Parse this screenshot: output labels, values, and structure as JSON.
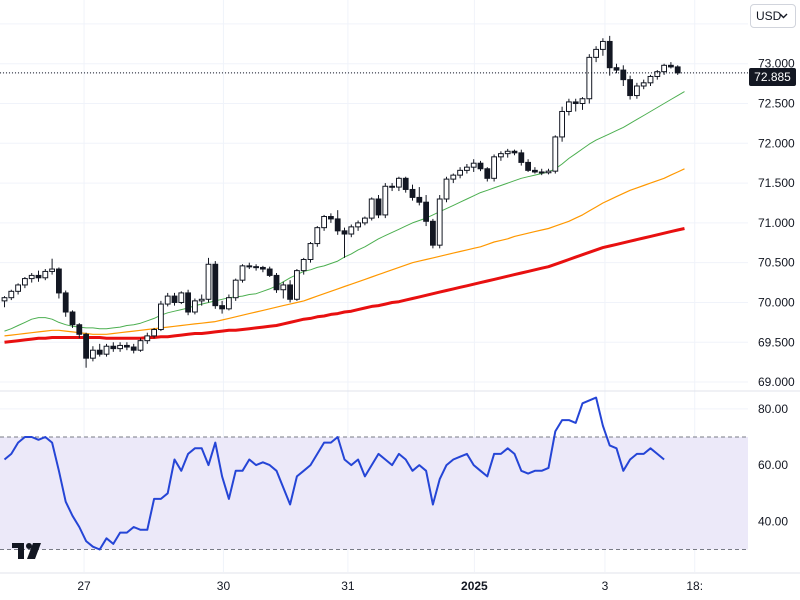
{
  "currency_selector": {
    "label": "USD",
    "chevron_icon": "chevron-down-icon"
  },
  "last_price": "72.885",
  "colors": {
    "candle_up": "#ffffff",
    "candle_down": "#131722",
    "ma_short": "#4caf50",
    "ma_mid": "#ff9800",
    "ma_long": "#e81010",
    "rsi_line": "#2545d6",
    "rsi_band": "#ece9f9",
    "grid": "#f0f3fa"
  },
  "chart_data": [
    {
      "type": "candlestick",
      "yticks": [
        "69.000",
        "69.500",
        "70.000",
        "70.500",
        "71.000",
        "71.500",
        "72.000",
        "72.500",
        "72.885",
        "73.000",
        "73.500"
      ],
      "ylim": [
        68.9,
        73.65
      ],
      "xlim": [
        0,
        101
      ],
      "last_value": 72.885,
      "grid": true,
      "ohlc": [
        [
          70.02,
          70.08,
          69.94,
          70.06
        ],
        [
          70.06,
          70.16,
          70.03,
          70.14
        ],
        [
          70.14,
          70.24,
          70.1,
          70.22
        ],
        [
          70.22,
          70.32,
          70.18,
          70.3
        ],
        [
          70.3,
          70.37,
          70.25,
          70.34
        ],
        [
          70.34,
          70.4,
          70.26,
          70.31
        ],
        [
          70.31,
          70.42,
          70.28,
          70.39
        ],
        [
          70.39,
          70.55,
          70.35,
          70.42
        ],
        [
          70.42,
          70.44,
          70.05,
          70.12
        ],
        [
          70.12,
          70.15,
          69.82,
          69.88
        ],
        [
          69.88,
          69.9,
          69.68,
          69.72
        ],
        [
          69.72,
          69.74,
          69.55,
          69.6
        ],
        [
          69.6,
          69.62,
          69.18,
          69.3
        ],
        [
          69.3,
          69.45,
          69.26,
          69.4
        ],
        [
          69.4,
          69.48,
          69.32,
          69.35
        ],
        [
          69.35,
          69.48,
          69.32,
          69.45
        ],
        [
          69.45,
          69.5,
          69.38,
          69.42
        ],
        [
          69.42,
          69.5,
          69.38,
          69.46
        ],
        [
          69.46,
          69.5,
          69.4,
          69.44
        ],
        [
          69.44,
          69.48,
          69.36,
          69.4
        ],
        [
          69.4,
          69.55,
          69.38,
          69.52
        ],
        [
          69.52,
          69.62,
          69.48,
          69.58
        ],
        [
          69.58,
          69.68,
          69.55,
          69.66
        ],
        [
          69.66,
          70.02,
          69.64,
          69.98
        ],
        [
          69.98,
          70.12,
          69.95,
          70.08
        ],
        [
          70.08,
          70.12,
          69.96,
          70.0
        ],
        [
          70.0,
          70.14,
          69.98,
          70.12
        ],
        [
          70.12,
          70.16,
          69.84,
          69.88
        ],
        [
          69.88,
          70.05,
          69.85,
          70.02
        ],
        [
          70.02,
          70.1,
          69.96,
          70.04
        ],
        [
          70.04,
          70.56,
          70.0,
          70.48
        ],
        [
          70.48,
          70.52,
          69.92,
          69.96
        ],
        [
          69.96,
          70.02,
          69.86,
          69.92
        ],
        [
          69.92,
          70.1,
          69.9,
          70.06
        ],
        [
          70.06,
          70.3,
          70.02,
          70.28
        ],
        [
          70.28,
          70.48,
          70.25,
          70.46
        ],
        [
          70.46,
          70.5,
          70.42,
          70.45
        ],
        [
          70.45,
          70.48,
          70.4,
          70.44
        ],
        [
          70.44,
          70.46,
          70.38,
          70.42
        ],
        [
          70.42,
          70.45,
          70.32,
          70.34
        ],
        [
          70.34,
          70.37,
          70.12,
          70.16
        ],
        [
          70.16,
          70.26,
          70.05,
          70.22
        ],
        [
          70.22,
          70.28,
          70.0,
          70.04
        ],
        [
          70.04,
          70.42,
          70.02,
          70.4
        ],
        [
          70.4,
          70.56,
          70.35,
          70.54
        ],
        [
          70.54,
          70.76,
          70.5,
          70.74
        ],
        [
          70.74,
          70.96,
          70.7,
          70.94
        ],
        [
          70.94,
          71.1,
          70.9,
          71.08
        ],
        [
          71.08,
          71.12,
          71.0,
          71.05
        ],
        [
          71.05,
          71.16,
          70.85,
          70.9
        ],
        [
          70.9,
          70.94,
          70.56,
          70.86
        ],
        [
          70.86,
          70.98,
          70.82,
          70.95
        ],
        [
          70.95,
          71.03,
          70.9,
          71.0
        ],
        [
          71.0,
          71.08,
          70.97,
          71.06
        ],
        [
          71.06,
          71.32,
          71.03,
          71.3
        ],
        [
          71.3,
          71.35,
          71.06,
          71.1
        ],
        [
          71.1,
          71.5,
          71.06,
          71.46
        ],
        [
          71.46,
          71.5,
          71.4,
          71.45
        ],
        [
          71.45,
          71.58,
          71.4,
          71.56
        ],
        [
          71.56,
          71.58,
          71.38,
          71.42
        ],
        [
          71.42,
          71.48,
          71.28,
          71.32
        ],
        [
          71.32,
          71.45,
          71.22,
          71.26
        ],
        [
          71.26,
          71.35,
          70.96,
          71.02
        ],
        [
          71.02,
          71.05,
          70.68,
          70.72
        ],
        [
          70.72,
          71.35,
          70.68,
          71.3
        ],
        [
          71.3,
          71.58,
          71.26,
          71.55
        ],
        [
          71.55,
          71.62,
          71.5,
          71.6
        ],
        [
          71.6,
          71.7,
          71.56,
          71.66
        ],
        [
          71.66,
          71.74,
          71.62,
          71.7
        ],
        [
          71.7,
          71.8,
          71.64,
          71.75
        ],
        [
          71.75,
          71.78,
          71.65,
          71.68
        ],
        [
          71.68,
          71.7,
          71.52,
          71.56
        ],
        [
          71.56,
          71.86,
          71.52,
          71.83
        ],
        [
          71.83,
          71.9,
          71.78,
          71.87
        ],
        [
          71.87,
          71.93,
          71.82,
          71.9
        ],
        [
          71.9,
          71.92,
          71.85,
          71.88
        ],
        [
          71.88,
          71.92,
          71.72,
          71.76
        ],
        [
          71.76,
          71.8,
          71.64,
          71.66
        ],
        [
          71.66,
          71.7,
          71.62,
          71.64
        ],
        [
          71.64,
          71.68,
          71.6,
          71.63
        ],
        [
          71.63,
          71.68,
          71.61,
          71.65
        ],
        [
          71.65,
          72.1,
          71.62,
          72.08
        ],
        [
          72.08,
          72.46,
          72.02,
          72.4
        ],
        [
          72.4,
          72.56,
          72.35,
          72.52
        ],
        [
          72.52,
          72.56,
          72.4,
          72.5
        ],
        [
          72.5,
          72.58,
          72.42,
          72.56
        ],
        [
          72.56,
          73.12,
          72.5,
          73.08
        ],
        [
          73.08,
          73.22,
          73.02,
          73.18
        ],
        [
          73.18,
          73.32,
          73.1,
          73.28
        ],
        [
          73.28,
          73.35,
          72.85,
          72.95
        ],
        [
          72.95,
          73.0,
          72.88,
          72.92
        ],
        [
          72.92,
          72.98,
          72.72,
          72.8
        ],
        [
          72.8,
          72.85,
          72.55,
          72.6
        ],
        [
          72.6,
          72.76,
          72.56,
          72.72
        ],
        [
          72.72,
          72.8,
          72.68,
          72.76
        ],
        [
          72.76,
          72.86,
          72.72,
          72.84
        ],
        [
          72.84,
          72.92,
          72.8,
          72.9
        ],
        [
          72.9,
          73.0,
          72.86,
          72.98
        ],
        [
          72.98,
          73.02,
          72.94,
          72.96
        ],
        [
          72.96,
          72.98,
          72.86,
          72.885
        ]
      ],
      "series": [
        {
          "values": [
            69.64,
            69.67,
            69.71,
            69.75,
            69.79,
            69.81,
            69.81,
            69.79,
            69.75,
            69.72,
            69.7,
            69.69,
            69.68,
            69.68,
            69.67,
            69.67,
            69.68,
            69.69,
            69.71,
            69.72,
            69.74,
            69.77,
            69.8,
            69.84,
            69.87,
            69.89,
            69.91,
            69.93,
            69.96,
            69.98,
            70.0,
            70.02,
            70.04,
            70.06,
            70.07,
            70.08,
            70.1,
            70.11,
            70.14,
            70.17,
            70.21,
            70.26,
            70.31,
            70.35,
            70.39,
            70.41,
            70.44,
            70.46,
            70.49,
            70.52,
            70.57,
            70.61,
            70.66,
            70.7,
            70.75,
            70.8,
            70.84,
            70.88,
            70.92,
            70.96,
            71.0,
            71.03,
            71.06,
            71.1,
            71.14,
            71.18,
            71.22,
            71.26,
            71.3,
            71.34,
            71.38,
            71.41,
            71.44,
            71.47,
            71.5,
            71.53,
            71.56,
            71.58,
            71.6,
            71.62,
            71.64,
            71.68,
            71.74,
            71.81,
            71.87,
            71.93,
            71.99,
            72.04,
            72.08,
            72.12,
            72.16,
            72.2,
            72.25,
            72.3,
            72.35,
            72.4,
            72.45,
            72.5,
            72.55,
            72.6,
            72.65
          ]
        },
        {
          "values": [
            69.58,
            69.59,
            69.6,
            69.61,
            69.62,
            69.63,
            69.64,
            69.65,
            69.65,
            69.64,
            69.63,
            69.62,
            69.61,
            69.6,
            69.6,
            69.6,
            69.61,
            69.62,
            69.63,
            69.64,
            69.65,
            69.66,
            69.67,
            69.68,
            69.69,
            69.7,
            69.71,
            69.72,
            69.73,
            69.74,
            69.75,
            69.76,
            69.78,
            69.8,
            69.82,
            69.84,
            69.86,
            69.88,
            69.9,
            69.92,
            69.94,
            69.96,
            69.98,
            70.0,
            70.02,
            70.05,
            70.08,
            70.11,
            70.14,
            70.17,
            70.2,
            70.23,
            70.26,
            70.29,
            70.32,
            70.35,
            70.38,
            70.41,
            70.44,
            70.47,
            70.5,
            70.52,
            70.54,
            70.56,
            70.58,
            70.6,
            70.62,
            70.64,
            70.66,
            70.68,
            70.7,
            70.73,
            70.76,
            70.78,
            70.8,
            70.83,
            70.85,
            70.87,
            70.89,
            70.91,
            70.93,
            70.96,
            70.99,
            71.02,
            71.06,
            71.1,
            71.15,
            71.2,
            71.25,
            71.29,
            71.33,
            71.37,
            71.41,
            71.44,
            71.47,
            71.5,
            71.53,
            71.56,
            71.6,
            71.64,
            71.68
          ]
        },
        {
          "values": [
            69.5,
            69.51,
            69.52,
            69.53,
            69.54,
            69.55,
            69.55,
            69.56,
            69.56,
            69.56,
            69.56,
            69.56,
            69.56,
            69.56,
            69.56,
            69.55,
            69.55,
            69.55,
            69.55,
            69.55,
            69.55,
            69.56,
            69.56,
            69.57,
            69.57,
            69.58,
            69.59,
            69.6,
            69.61,
            69.61,
            69.62,
            69.63,
            69.64,
            69.65,
            69.65,
            69.66,
            69.67,
            69.68,
            69.69,
            69.7,
            69.71,
            69.73,
            69.75,
            69.77,
            69.79,
            69.8,
            69.82,
            69.83,
            69.85,
            69.86,
            69.88,
            69.89,
            69.91,
            69.93,
            69.95,
            69.96,
            69.98,
            70.0,
            70.01,
            70.03,
            70.05,
            70.07,
            70.09,
            70.11,
            70.13,
            70.15,
            70.17,
            70.19,
            70.21,
            70.23,
            70.25,
            70.27,
            70.29,
            70.31,
            70.33,
            70.35,
            70.37,
            70.39,
            70.41,
            70.43,
            70.45,
            70.48,
            70.51,
            70.54,
            70.57,
            70.6,
            70.63,
            70.66,
            70.69,
            70.71,
            70.73,
            70.75,
            70.77,
            70.79,
            70.81,
            70.83,
            70.85,
            70.87,
            70.89,
            70.91,
            70.93
          ]
        }
      ]
    },
    {
      "type": "line",
      "yticks": [
        "40.00",
        "60.00",
        "80.00"
      ],
      "ylim": [
        22,
        86
      ],
      "band": [
        30,
        70
      ],
      "xlim": [
        0,
        101
      ],
      "xticks": [
        {
          "x": 11.7,
          "label": "27"
        },
        {
          "x": 32.2,
          "label": "30"
        },
        {
          "x": 50.5,
          "label": "31"
        },
        {
          "x": 69.1,
          "label": "2025"
        },
        {
          "x": 88.3,
          "label": "3"
        },
        {
          "x": 101.5,
          "label": "18:"
        }
      ],
      "grid": true,
      "series": [
        {
          "values": [
            62,
            64,
            68,
            70,
            70,
            69,
            70,
            68,
            58,
            47,
            42,
            38,
            33,
            31,
            30,
            34,
            32,
            36,
            36,
            38,
            37,
            37,
            48,
            48,
            50,
            62,
            58,
            64,
            66,
            66,
            60,
            68,
            56,
            48,
            58,
            58,
            62,
            60,
            61,
            60,
            58,
            52,
            46,
            56,
            58,
            60,
            64,
            68,
            68,
            70,
            62,
            60,
            62,
            56,
            60,
            64,
            62,
            60,
            64,
            62,
            58,
            60,
            58,
            46,
            55,
            60,
            62,
            63,
            64,
            60,
            58,
            56,
            64,
            64,
            66,
            64,
            58,
            57,
            58,
            58,
            59,
            72,
            76,
            76,
            75,
            82,
            83,
            84,
            74,
            67,
            66,
            58,
            62,
            64,
            64,
            66,
            64,
            62
          ]
        }
      ]
    }
  ]
}
